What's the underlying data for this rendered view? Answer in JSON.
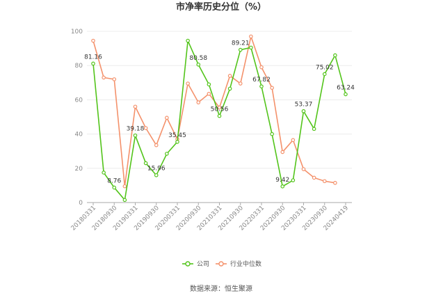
{
  "chart_data": {
    "type": "line",
    "title": "市净率历史分位（%）",
    "ylim": [
      0,
      100
    ],
    "yticks": [
      0,
      20,
      40,
      60,
      80,
      100
    ],
    "x": [
      "20180331",
      "20180630",
      "20180930",
      "20181231",
      "20190331",
      "20190630",
      "20190930",
      "20191231",
      "20200331",
      "20200630",
      "20200930",
      "20201231",
      "20210331",
      "20210630",
      "20210930",
      "20211231",
      "20220331",
      "20220630",
      "20220930",
      "20221231",
      "20230331",
      "20230630",
      "20230930",
      "20231231",
      "20240419"
    ],
    "xtick_labels": [
      "20180331",
      "20180930",
      "20190331",
      "20190930",
      "20200331",
      "20200930",
      "20210331",
      "20210930",
      "20220331",
      "20220930",
      "20230331",
      "20230930",
      "20240419"
    ],
    "series": [
      {
        "name": "公司",
        "color": "#52c41a",
        "values": [
          81.16,
          17.5,
          8.76,
          1.5,
          39.18,
          23.0,
          15.96,
          28.5,
          35.45,
          94.5,
          80.58,
          69.0,
          50.56,
          66.5,
          89.21,
          90.5,
          67.82,
          40.0,
          9.42,
          13.0,
          53.37,
          43.0,
          75.02,
          86.0,
          63.24
        ]
      },
      {
        "name": "行业中位数",
        "color": "#f4916b",
        "values": [
          94.5,
          73.0,
          72.0,
          9.5,
          56.0,
          43.5,
          33.5,
          49.5,
          37.0,
          69.5,
          58.5,
          63.5,
          55.5,
          74.0,
          69.5,
          97.0,
          79.0,
          67.0,
          29.5,
          36.5,
          19.5,
          14.5,
          12.5,
          11.5,
          null
        ]
      }
    ],
    "data_labels": [
      {
        "series": 0,
        "index": 0,
        "text": "81.16"
      },
      {
        "series": 0,
        "index": 2,
        "text": "8.76"
      },
      {
        "series": 0,
        "index": 4,
        "text": "39.18"
      },
      {
        "series": 0,
        "index": 6,
        "text": "15.96"
      },
      {
        "series": 0,
        "index": 8,
        "text": "35.45"
      },
      {
        "series": 0,
        "index": 10,
        "text": "80.58"
      },
      {
        "series": 0,
        "index": 12,
        "text": "50.56"
      },
      {
        "series": 0,
        "index": 14,
        "text": "89.21"
      },
      {
        "series": 0,
        "index": 16,
        "text": "67.82"
      },
      {
        "series": 0,
        "index": 18,
        "text": "9.42"
      },
      {
        "series": 0,
        "index": 20,
        "text": "53.37"
      },
      {
        "series": 0,
        "index": 22,
        "text": "75.02"
      },
      {
        "series": 0,
        "index": 24,
        "text": "63.24"
      }
    ],
    "legend": {
      "position": "bottom",
      "entries": [
        "公司",
        "行业中位数"
      ]
    },
    "grid": true,
    "source": "数据来源：恒生聚源"
  }
}
